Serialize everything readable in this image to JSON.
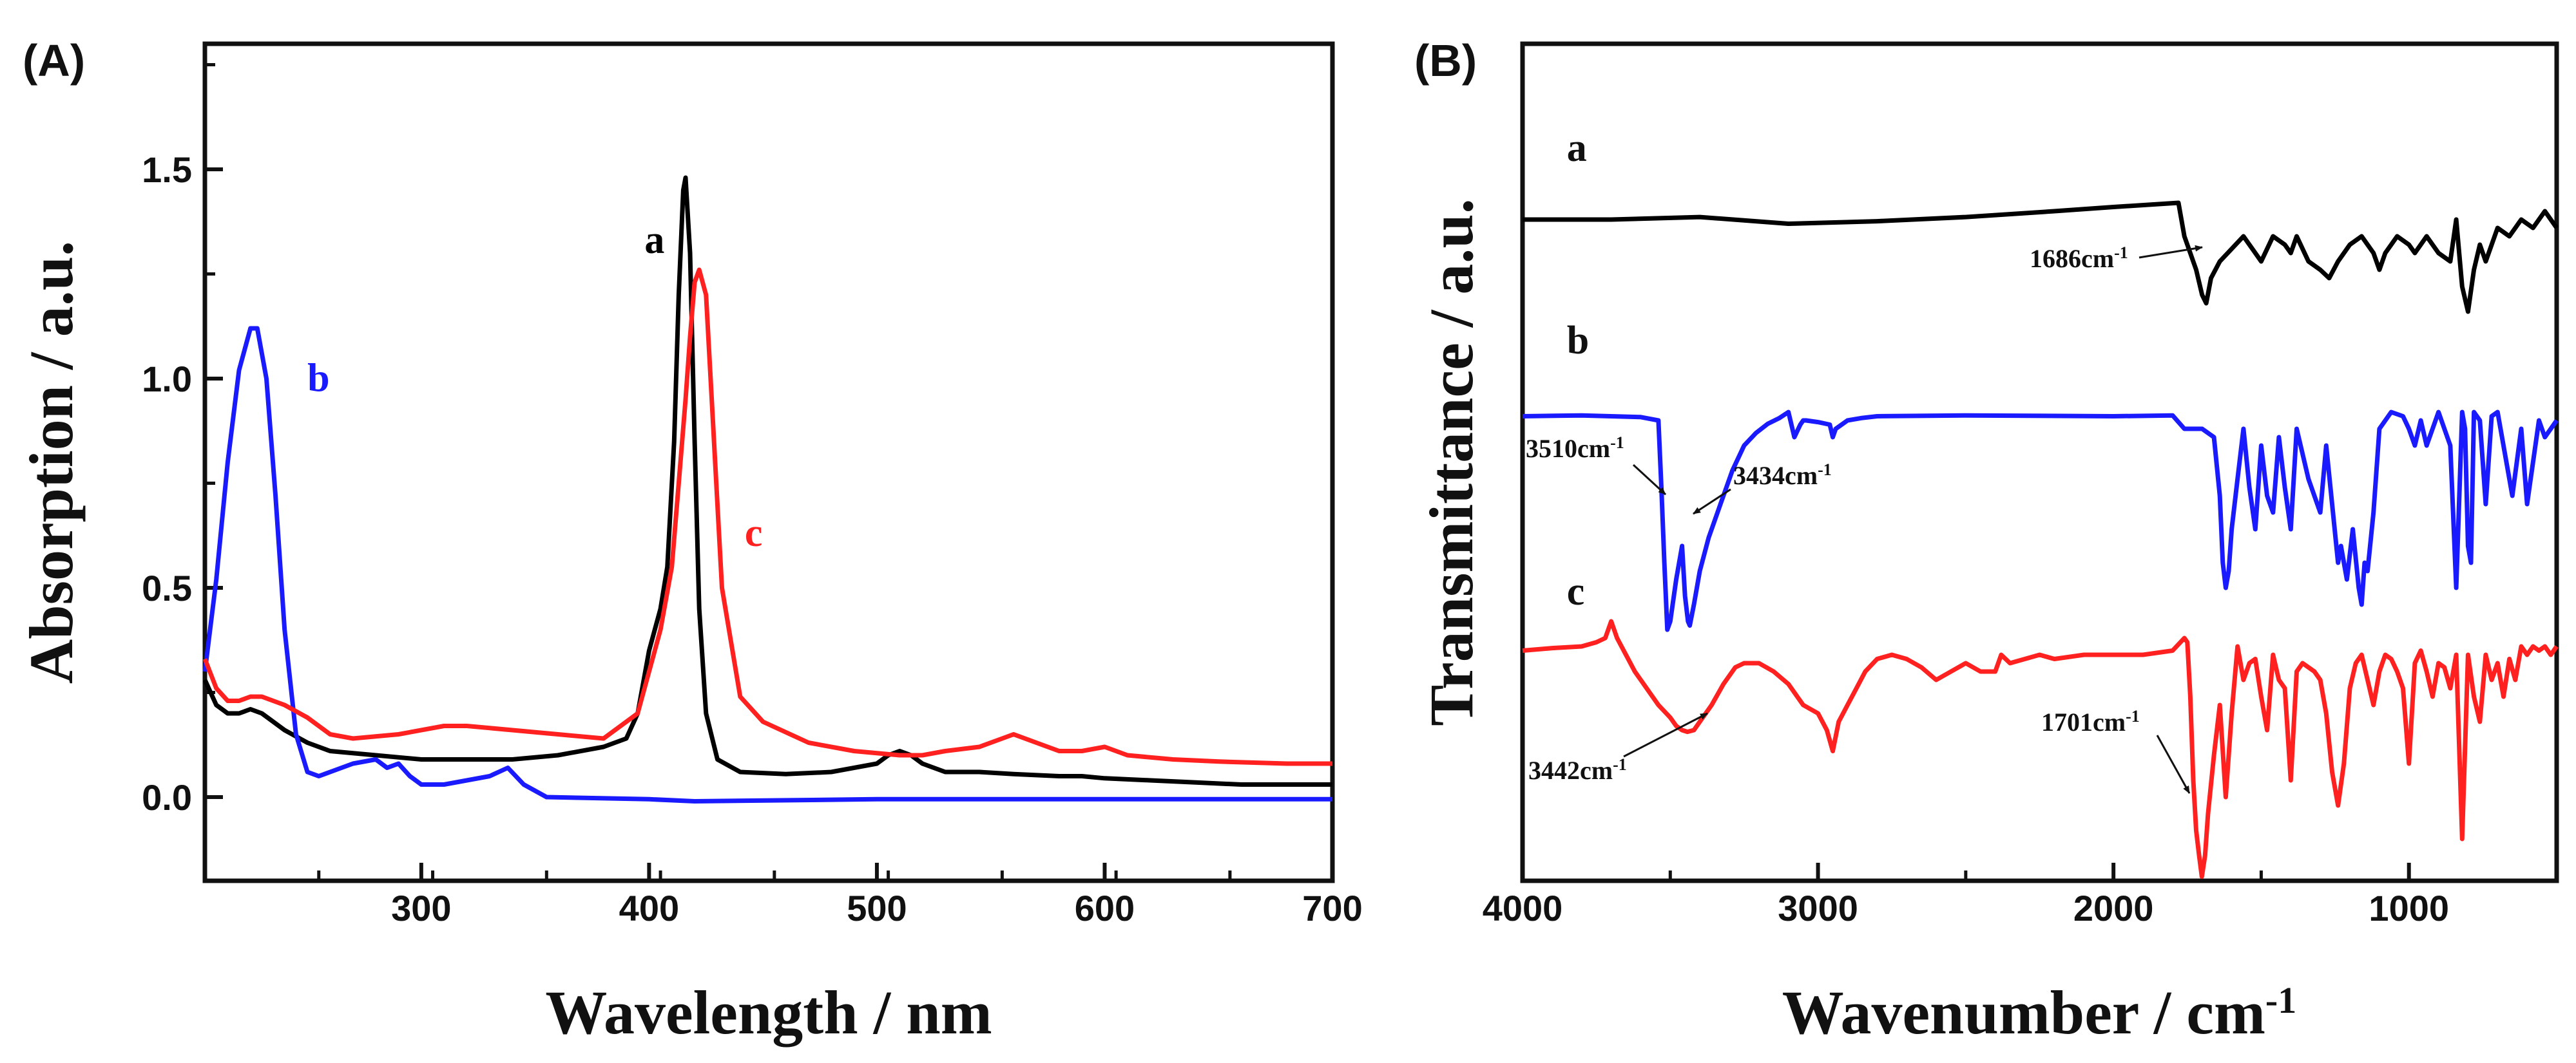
{
  "chart_data": [
    {
      "panel": "(A)",
      "type": "line",
      "title": "",
      "xlabel": "Wavelength / nm",
      "ylabel": "Absorption / a.u.",
      "xlim": [
        205,
        700
      ],
      "ylim": [
        -0.2,
        1.8
      ],
      "xticks": [
        300,
        400,
        500,
        600,
        700
      ],
      "xtick_labels": [
        "300",
        "400",
        "500",
        "600",
        "700"
      ],
      "yticks": [
        0.0,
        0.5,
        1.0,
        1.5
      ],
      "ytick_labels": [
        "0.0",
        "0.5",
        "1.0",
        "1.5"
      ],
      "series": [
        {
          "name": "a",
          "color": "#000000",
          "x": [
            205,
            210,
            215,
            220,
            225,
            230,
            235,
            240,
            250,
            260,
            280,
            300,
            320,
            340,
            360,
            380,
            390,
            395,
            400,
            405,
            408,
            411,
            413,
            415,
            416,
            418,
            420,
            422,
            425,
            430,
            440,
            460,
            480,
            500,
            505,
            510,
            515,
            520,
            530,
            545,
            560,
            580,
            590,
            600,
            620,
            640,
            660,
            680,
            700
          ],
          "y": [
            0.28,
            0.22,
            0.2,
            0.2,
            0.21,
            0.2,
            0.18,
            0.16,
            0.13,
            0.11,
            0.1,
            0.09,
            0.09,
            0.09,
            0.1,
            0.12,
            0.14,
            0.2,
            0.35,
            0.45,
            0.55,
            0.85,
            1.2,
            1.45,
            1.48,
            1.3,
            0.85,
            0.45,
            0.2,
            0.09,
            0.06,
            0.055,
            0.06,
            0.08,
            0.1,
            0.11,
            0.1,
            0.08,
            0.06,
            0.06,
            0.055,
            0.05,
            0.05,
            0.045,
            0.04,
            0.035,
            0.03,
            0.03,
            0.03
          ]
        },
        {
          "name": "b",
          "color": "#1a1aff",
          "x": [
            205,
            210,
            215,
            220,
            225,
            228,
            232,
            236,
            240,
            245,
            250,
            255,
            260,
            270,
            280,
            285,
            290,
            295,
            300,
            305,
            310,
            320,
            330,
            338,
            345,
            355,
            400,
            420,
            500,
            600,
            700
          ],
          "y": [
            0.3,
            0.52,
            0.8,
            1.02,
            1.12,
            1.12,
            1.0,
            0.72,
            0.4,
            0.15,
            0.06,
            0.05,
            0.06,
            0.08,
            0.09,
            0.07,
            0.08,
            0.05,
            0.03,
            0.03,
            0.03,
            0.04,
            0.05,
            0.07,
            0.03,
            0.0,
            -0.005,
            -0.01,
            -0.005,
            -0.005,
            -0.005
          ]
        },
        {
          "name": "c",
          "color": "#ff2020",
          "x": [
            205,
            210,
            215,
            220,
            225,
            230,
            240,
            250,
            260,
            270,
            290,
            310,
            320,
            340,
            360,
            380,
            395,
            400,
            405,
            410,
            413,
            416,
            418,
            420,
            422,
            425,
            428,
            432,
            440,
            450,
            470,
            490,
            510,
            520,
            530,
            545,
            555,
            560,
            570,
            580,
            590,
            600,
            610,
            630,
            650,
            680,
            700
          ],
          "y": [
            0.33,
            0.26,
            0.23,
            0.23,
            0.24,
            0.24,
            0.22,
            0.19,
            0.15,
            0.14,
            0.15,
            0.17,
            0.17,
            0.16,
            0.15,
            0.14,
            0.2,
            0.3,
            0.4,
            0.55,
            0.75,
            0.95,
            1.1,
            1.23,
            1.26,
            1.2,
            0.9,
            0.5,
            0.24,
            0.18,
            0.13,
            0.11,
            0.1,
            0.1,
            0.11,
            0.12,
            0.14,
            0.15,
            0.13,
            0.11,
            0.11,
            0.12,
            0.1,
            0.09,
            0.085,
            0.08,
            0.08
          ]
        }
      ],
      "curve_labels": [
        {
          "text": "a",
          "color": "#000000",
          "x": 398,
          "y": 1.3
        },
        {
          "text": "b",
          "color": "#1a1aff",
          "x": 250,
          "y": 0.97
        },
        {
          "text": "c",
          "color": "#ff2020",
          "x": 442,
          "y": 0.6
        }
      ]
    },
    {
      "panel": "(B)",
      "type": "line",
      "title": "",
      "xlabel": "Wavenumber / cm",
      "xlabel_superscript": "-1",
      "ylabel": "Transmittance / a.u.",
      "xlim": [
        4000,
        500
      ],
      "xticks": [
        4000,
        3000,
        2000,
        1000
      ],
      "xtick_labels": [
        "4000",
        "3000",
        "2000",
        "1000"
      ],
      "yticks": [],
      "ylim": [
        0,
        100
      ],
      "series": [
        {
          "name": "a",
          "color": "#000000",
          "x": [
            4000,
            3700,
            3400,
            3100,
            2800,
            2500,
            2200,
            2000,
            1780,
            1760,
            1720,
            1700,
            1686,
            1670,
            1640,
            1600,
            1560,
            1520,
            1500,
            1460,
            1420,
            1400,
            1380,
            1340,
            1300,
            1270,
            1240,
            1200,
            1160,
            1120,
            1100,
            1080,
            1040,
            1000,
            980,
            940,
            900,
            860,
            840,
            820,
            800,
            780,
            760,
            740,
            700,
            660,
            620,
            580,
            540,
            500
          ],
          "y": [
            79,
            79,
            79.3,
            78.5,
            78.8,
            79.3,
            80,
            80.5,
            81,
            77,
            73,
            70,
            69,
            72,
            74,
            75.5,
            77,
            75,
            74,
            77,
            76,
            75,
            77,
            74,
            73,
            72,
            74,
            76,
            77,
            75,
            73,
            75,
            77,
            76,
            75,
            77,
            75,
            74,
            79,
            71,
            68,
            73,
            76,
            74,
            78,
            77,
            79,
            78,
            80,
            78
          ]
        },
        {
          "name": "b",
          "color": "#1a1aff",
          "x": [
            4000,
            3800,
            3600,
            3540,
            3530,
            3520,
            3510,
            3500,
            3480,
            3460,
            3450,
            3440,
            3434,
            3420,
            3400,
            3370,
            3330,
            3290,
            3250,
            3210,
            3170,
            3130,
            3100,
            3080,
            3060,
            3050,
            3040,
            3000,
            2960,
            2950,
            2940,
            2900,
            2850,
            2800,
            2500,
            2000,
            1800,
            1760,
            1700,
            1660,
            1640,
            1630,
            1620,
            1610,
            1600,
            1580,
            1560,
            1540,
            1520,
            1500,
            1480,
            1460,
            1440,
            1420,
            1400,
            1380,
            1340,
            1300,
            1280,
            1260,
            1240,
            1230,
            1210,
            1190,
            1170,
            1160,
            1150,
            1140,
            1120,
            1100,
            1060,
            1020,
            1000,
            980,
            960,
            940,
            900,
            860,
            840,
            820,
            810,
            800,
            790,
            780,
            760,
            740,
            720,
            700,
            650,
            620,
            600,
            560,
            540,
            500
          ],
          "y": [
            55.5,
            55.6,
            55.4,
            55,
            47,
            38,
            30,
            31,
            36,
            40,
            34,
            31,
            30.5,
            33,
            37,
            41,
            45,
            49,
            52,
            53.5,
            54.6,
            55.3,
            56,
            53,
            54.5,
            55,
            55,
            54.8,
            54.5,
            53,
            54,
            55,
            55.3,
            55.5,
            55.6,
            55.5,
            55.6,
            54,
            54,
            53,
            46,
            38,
            35,
            37,
            42,
            48,
            54,
            47,
            42,
            52,
            46,
            44,
            53,
            47,
            42,
            54,
            48,
            44,
            52,
            45,
            38,
            40,
            36,
            42,
            35,
            33,
            38,
            37,
            44,
            54,
            56,
            55.5,
            54,
            52,
            55,
            52,
            56,
            52,
            35,
            56,
            54,
            40,
            38,
            56,
            55,
            45,
            55.5,
            56,
            46,
            54,
            45,
            55,
            53,
            55
          ]
        },
        {
          "name": "c",
          "color": "#ff2020",
          "x": [
            4000,
            3900,
            3800,
            3750,
            3720,
            3700,
            3680,
            3650,
            3620,
            3580,
            3540,
            3500,
            3480,
            3460,
            3442,
            3420,
            3400,
            3360,
            3320,
            3280,
            3250,
            3200,
            3150,
            3100,
            3050,
            3000,
            2970,
            2950,
            2930,
            2900,
            2870,
            2840,
            2800,
            2750,
            2700,
            2650,
            2600,
            2550,
            2500,
            2450,
            2400,
            2380,
            2350,
            2300,
            2250,
            2200,
            2100,
            2000,
            1900,
            1800,
            1760,
            1750,
            1740,
            1730,
            1720,
            1710,
            1701,
            1690,
            1680,
            1660,
            1640,
            1620,
            1600,
            1580,
            1560,
            1540,
            1520,
            1500,
            1480,
            1460,
            1440,
            1420,
            1400,
            1380,
            1360,
            1340,
            1320,
            1300,
            1280,
            1260,
            1240,
            1220,
            1200,
            1180,
            1160,
            1140,
            1120,
            1100,
            1080,
            1060,
            1040,
            1020,
            1000,
            980,
            960,
            940,
            920,
            900,
            880,
            860,
            840,
            820,
            800,
            780,
            760,
            740,
            720,
            700,
            680,
            660,
            640,
            620,
            600,
            580,
            560,
            540,
            520,
            500
          ],
          "y": [
            27.5,
            27.8,
            28,
            28.5,
            29,
            31,
            29,
            27,
            25,
            23,
            21,
            19.5,
            18.5,
            18,
            17.8,
            18,
            19,
            21,
            23.5,
            25.5,
            26,
            26,
            25,
            23.5,
            21,
            20,
            18,
            15.5,
            19,
            21,
            23,
            25,
            26.5,
            27,
            26.5,
            25.5,
            24,
            25,
            26,
            25,
            25,
            27,
            26,
            26.5,
            27,
            26.5,
            27,
            27,
            27,
            27.5,
            29,
            28.5,
            22,
            12,
            6,
            3,
            0.5,
            3,
            8,
            15,
            21,
            10,
            20,
            28,
            24,
            26,
            26.5,
            22,
            18,
            27,
            24,
            23,
            12,
            25,
            26,
            25.5,
            25,
            24,
            20,
            13,
            9,
            14,
            23,
            26,
            27,
            24,
            21,
            25,
            27,
            26.5,
            25,
            23,
            14,
            26,
            27.5,
            25,
            22,
            26,
            25.5,
            23,
            27,
            5,
            27,
            22,
            19,
            27,
            24,
            26,
            22,
            26.5,
            24,
            28,
            27,
            28,
            27.5,
            28,
            27,
            28
          ]
        }
      ],
      "curve_labels": [
        {
          "text": "a",
          "color": "#111111",
          "x": 3850,
          "y": 86
        },
        {
          "text": "b",
          "color": "#111111",
          "x": 3850,
          "y": 63
        },
        {
          "text": "c",
          "color": "#111111",
          "x": 3850,
          "y": 33
        }
      ],
      "annotations": [
        {
          "text": "1686cm",
          "sup": "-1"
        },
        {
          "text": "3510cm",
          "sup": "-1"
        },
        {
          "text": "3434cm",
          "sup": "-1"
        },
        {
          "text": "3442cm",
          "sup": "-1"
        },
        {
          "text": "1701cm",
          "sup": "-1"
        }
      ]
    }
  ]
}
